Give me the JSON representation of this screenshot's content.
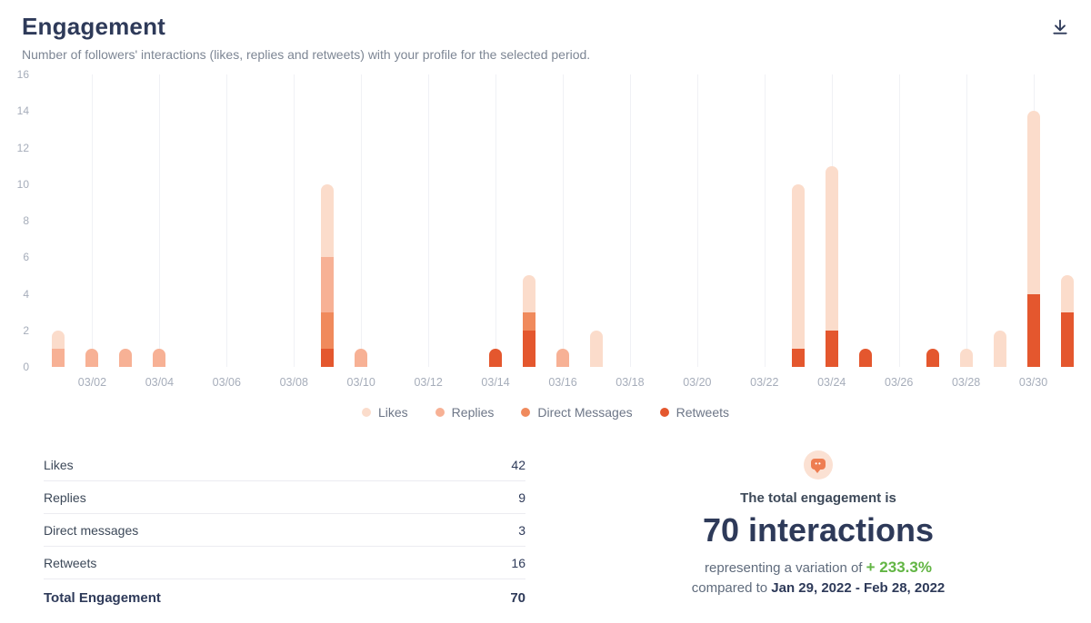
{
  "header": {
    "title": "Engagement",
    "subtitle": "Number of followers' interactions (likes, replies and retweets) with your profile for the selected period."
  },
  "chart_data": {
    "type": "bar",
    "stacked": true,
    "days": [
      "03/01",
      "03/02",
      "03/03",
      "03/04",
      "03/05",
      "03/06",
      "03/07",
      "03/08",
      "03/09",
      "03/10",
      "03/11",
      "03/12",
      "03/13",
      "03/14",
      "03/15",
      "03/16",
      "03/17",
      "03/18",
      "03/19",
      "03/20",
      "03/21",
      "03/22",
      "03/23",
      "03/24",
      "03/25",
      "03/26",
      "03/27",
      "03/28",
      "03/29",
      "03/30",
      "03/31"
    ],
    "tick_labels": [
      "03/02",
      "03/04",
      "03/06",
      "03/08",
      "03/10",
      "03/12",
      "03/14",
      "03/16",
      "03/18",
      "03/20",
      "03/22",
      "03/24",
      "03/26",
      "03/28",
      "03/30"
    ],
    "series": [
      {
        "name": "Likes",
        "color": "#fbdccb",
        "values": [
          1,
          0,
          0,
          0,
          0,
          0,
          0,
          0,
          4,
          0,
          0,
          0,
          0,
          0,
          2,
          0,
          2,
          0,
          0,
          0,
          0,
          0,
          9,
          9,
          0,
          0,
          0,
          1,
          2,
          10,
          2
        ]
      },
      {
        "name": "Replies",
        "color": "#f7b195",
        "values": [
          1,
          1,
          1,
          1,
          0,
          0,
          0,
          0,
          3,
          1,
          0,
          0,
          0,
          0,
          0,
          1,
          0,
          0,
          0,
          0,
          0,
          0,
          0,
          0,
          0,
          0,
          0,
          0,
          0,
          0,
          0
        ]
      },
      {
        "name": "Direct Messages",
        "color": "#f08a5c",
        "values": [
          0,
          0,
          0,
          0,
          0,
          0,
          0,
          0,
          2,
          0,
          0,
          0,
          0,
          0,
          1,
          0,
          0,
          0,
          0,
          0,
          0,
          0,
          0,
          0,
          0,
          0,
          0,
          0,
          0,
          0,
          0
        ]
      },
      {
        "name": "Retweets",
        "color": "#e4572e",
        "values": [
          0,
          0,
          0,
          0,
          0,
          0,
          0,
          0,
          1,
          0,
          0,
          0,
          0,
          1,
          2,
          0,
          0,
          0,
          0,
          0,
          0,
          0,
          1,
          2,
          1,
          0,
          1,
          0,
          0,
          4,
          3
        ]
      }
    ],
    "ylim": [
      0,
      16
    ],
    "yticks": [
      0,
      2,
      4,
      6,
      8,
      10,
      12,
      14,
      16
    ],
    "grid": "vertical",
    "legend_position": "bottom"
  },
  "table": {
    "rows": [
      {
        "label": "Likes",
        "value": "42"
      },
      {
        "label": "Replies",
        "value": "9"
      },
      {
        "label": "Direct messages",
        "value": "3"
      },
      {
        "label": "Retweets",
        "value": "16"
      }
    ],
    "total": {
      "label": "Total Engagement",
      "value": "70"
    }
  },
  "summary": {
    "line1": "The total engagement is",
    "big": "70 interactions",
    "variation_prefix": "representing a variation of",
    "variation_value": "+ 233.3%",
    "variation_color": "#62b544",
    "compare_prefix": "compared to",
    "compare_range": "Jan 29, 2022 - Feb 28, 2022"
  }
}
